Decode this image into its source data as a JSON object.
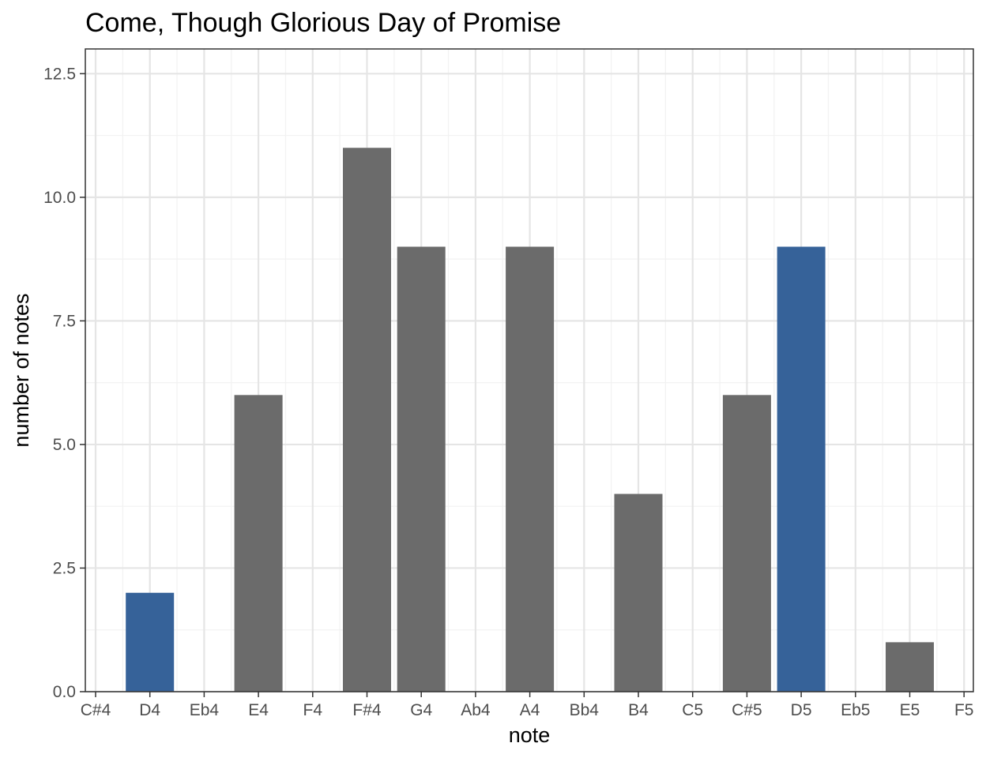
{
  "chart_data": {
    "type": "bar",
    "title": "Come, Though Glorious Day of Promise",
    "xlabel": "note",
    "ylabel": "number of notes",
    "categories": [
      "C#4",
      "D4",
      "Eb4",
      "E4",
      "F4",
      "F#4",
      "G4",
      "Ab4",
      "A4",
      "Bb4",
      "B4",
      "C5",
      "C#5",
      "D5",
      "Eb5",
      "E5",
      "F5"
    ],
    "values": [
      0,
      2,
      0,
      6,
      0,
      11,
      9,
      0,
      9,
      0,
      4,
      0,
      6,
      9,
      0,
      1,
      0
    ],
    "highlighted": [
      "D4",
      "D5"
    ],
    "ylim": [
      0,
      13
    ],
    "yticks": [
      0,
      2.5,
      5,
      7.5,
      10,
      12.5
    ],
    "ytick_labels": [
      "0.0",
      "2.5",
      "5.0",
      "7.5",
      "10.0",
      "12.5"
    ],
    "grid": true,
    "legend": "none",
    "colors": {
      "bar_default": "#6b6b6b",
      "bar_highlight": "#366299",
      "grid_major": "#e5e5e5",
      "grid_minor": "#f2f2f2",
      "panel_border": "#333333"
    }
  }
}
